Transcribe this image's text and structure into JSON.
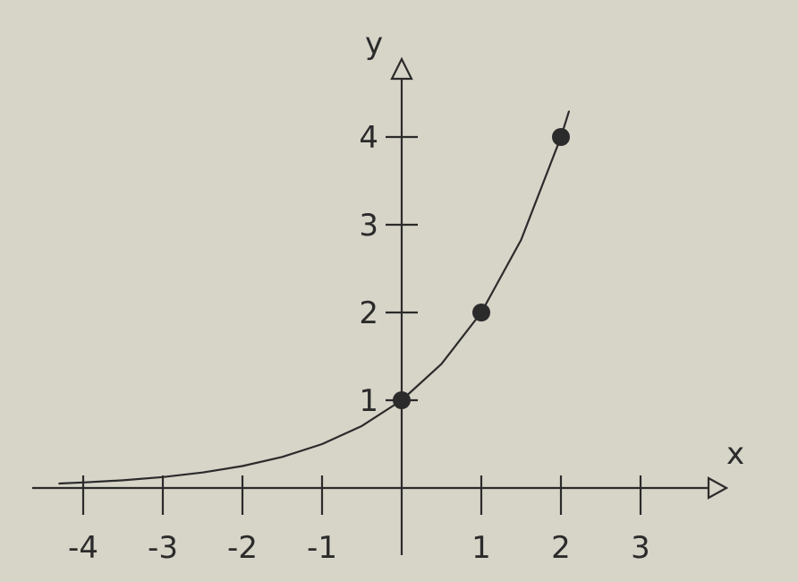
{
  "chart_data": {
    "type": "line",
    "title": "",
    "xlabel": "x",
    "ylabel": "y",
    "xlim": [
      -4.3,
      3.9
    ],
    "ylim": [
      -0.1,
      4.6
    ],
    "grid": false,
    "x_ticks": [
      -4,
      -3,
      -2,
      -1,
      1,
      2,
      3
    ],
    "x_tick_labels": [
      "-4",
      "-3",
      "-2",
      "-1",
      "1",
      "2",
      "3"
    ],
    "y_ticks": [
      1,
      2,
      3,
      4
    ],
    "y_tick_labels": [
      "1",
      "2",
      "3",
      "4"
    ],
    "series": [
      {
        "x": [
          -4.3,
          -4,
          -3.5,
          -3,
          -2.5,
          -2,
          -1.5,
          -1,
          -0.5,
          0,
          0.5,
          1,
          1.5,
          2,
          2.1
        ],
        "y": [
          0.051,
          0.063,
          0.088,
          0.125,
          0.177,
          0.25,
          0.354,
          0.5,
          0.707,
          1,
          1.414,
          2,
          2.828,
          4,
          4.29
        ]
      }
    ],
    "points": [
      {
        "x": 0,
        "y": 1
      },
      {
        "x": 1,
        "y": 2
      },
      {
        "x": 2,
        "y": 4
      }
    ],
    "colors": {
      "background": "#d7d4c8",
      "ink": "#2b2b2b"
    }
  }
}
